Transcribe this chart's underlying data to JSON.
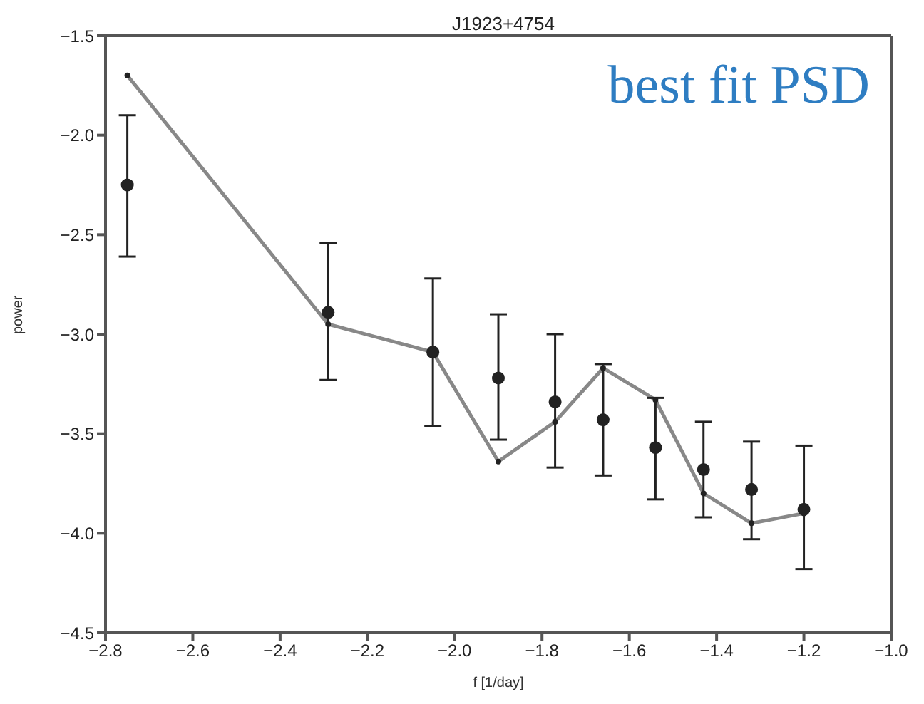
{
  "chart_data": {
    "type": "line",
    "title": "J1923+4754",
    "xlabel": "f [1/day]",
    "ylabel": "power",
    "annotations": [
      "best fit PSD"
    ],
    "xlim": [
      -2.8,
      -1.0
    ],
    "xticks": [
      {
        "value": -2.8,
        "label": "−2.8"
      },
      {
        "value": -2.6,
        "label": "−2.6"
      },
      {
        "value": -2.4,
        "label": "−2.4"
      },
      {
        "value": -2.2,
        "label": "−2.2"
      },
      {
        "value": -2.0,
        "label": "−2.0"
      },
      {
        "value": -1.8,
        "label": "−1.8"
      },
      {
        "value": -1.6,
        "label": "−1.6"
      },
      {
        "value": -1.4,
        "label": "−1.4"
      },
      {
        "value": -1.2,
        "label": "−1.2"
      },
      {
        "value": -1.0,
        "label": "−1.0"
      }
    ],
    "ylim": [
      -4.5,
      -1.5
    ],
    "yticks": [
      {
        "value": -4.5,
        "label": "−4.5"
      },
      {
        "value": -4.0,
        "label": "−4.0"
      },
      {
        "value": -3.5,
        "label": "−3.5"
      },
      {
        "value": -3.0,
        "label": "−3.0"
      },
      {
        "value": -2.5,
        "label": "−2.5"
      },
      {
        "value": -2.0,
        "label": "−2.0"
      },
      {
        "value": -1.5,
        "label": "−1.5"
      }
    ],
    "marker": "circle",
    "line_style": "solid",
    "series": [
      {
        "color": "#888888",
        "x": [
          -2.75,
          -2.29,
          -2.05,
          -1.9,
          -1.77,
          -1.66,
          -1.54,
          -1.43,
          -1.32,
          -1.2
        ],
        "values": [
          -1.7,
          -2.95,
          -3.09,
          -3.64,
          -3.44,
          -3.17,
          -3.33,
          -3.8,
          -3.95,
          -3.9
        ]
      },
      {
        "type": "scatter",
        "color": "#222222",
        "x": [
          -2.75,
          -2.29,
          -2.05,
          -1.9,
          -1.77,
          -1.66,
          -1.54,
          -1.43,
          -1.32,
          -1.2
        ],
        "values": [
          -2.25,
          -2.89,
          -3.09,
          -3.22,
          -3.34,
          -3.43,
          -3.57,
          -3.68,
          -3.78,
          -3.88
        ],
        "errors": [
          [
            -2.61,
            -1.9
          ],
          [
            -3.23,
            -2.54
          ],
          [
            -3.46,
            -2.72
          ],
          [
            -3.53,
            -2.9
          ],
          [
            -3.67,
            -3.0
          ],
          [
            -3.71,
            -3.15
          ],
          [
            -3.83,
            -3.32
          ],
          [
            -3.92,
            -3.44
          ],
          [
            -4.03,
            -3.54
          ],
          [
            -4.18,
            -3.56
          ]
        ]
      }
    ]
  }
}
